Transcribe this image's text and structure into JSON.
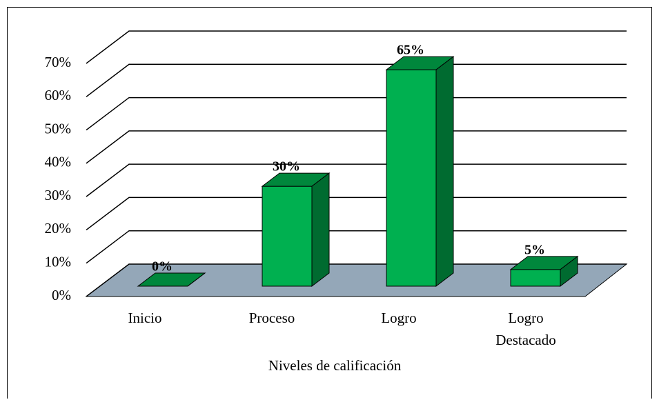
{
  "chart_data": {
    "type": "bar3d",
    "categories": [
      "Inicio",
      "Proceso",
      "Logro",
      "Logro\nDestacado"
    ],
    "values": [
      0,
      30,
      65,
      5
    ],
    "value_labels": [
      "0%",
      "30%",
      "65%",
      "5%"
    ],
    "color": "#00b050",
    "x_label": "Niveles de calificación",
    "ylim": [
      0,
      70
    ],
    "yticks": [
      {
        "value": 0,
        "label": "0%"
      },
      {
        "value": 10,
        "label": "10%"
      },
      {
        "value": 20,
        "label": "20%"
      },
      {
        "value": 30,
        "label": "30%"
      },
      {
        "value": 40,
        "label": "40%"
      },
      {
        "value": 50,
        "label": "50%"
      },
      {
        "value": 60,
        "label": "60%"
      },
      {
        "value": 70,
        "label": "70%"
      }
    ],
    "grid": true
  }
}
